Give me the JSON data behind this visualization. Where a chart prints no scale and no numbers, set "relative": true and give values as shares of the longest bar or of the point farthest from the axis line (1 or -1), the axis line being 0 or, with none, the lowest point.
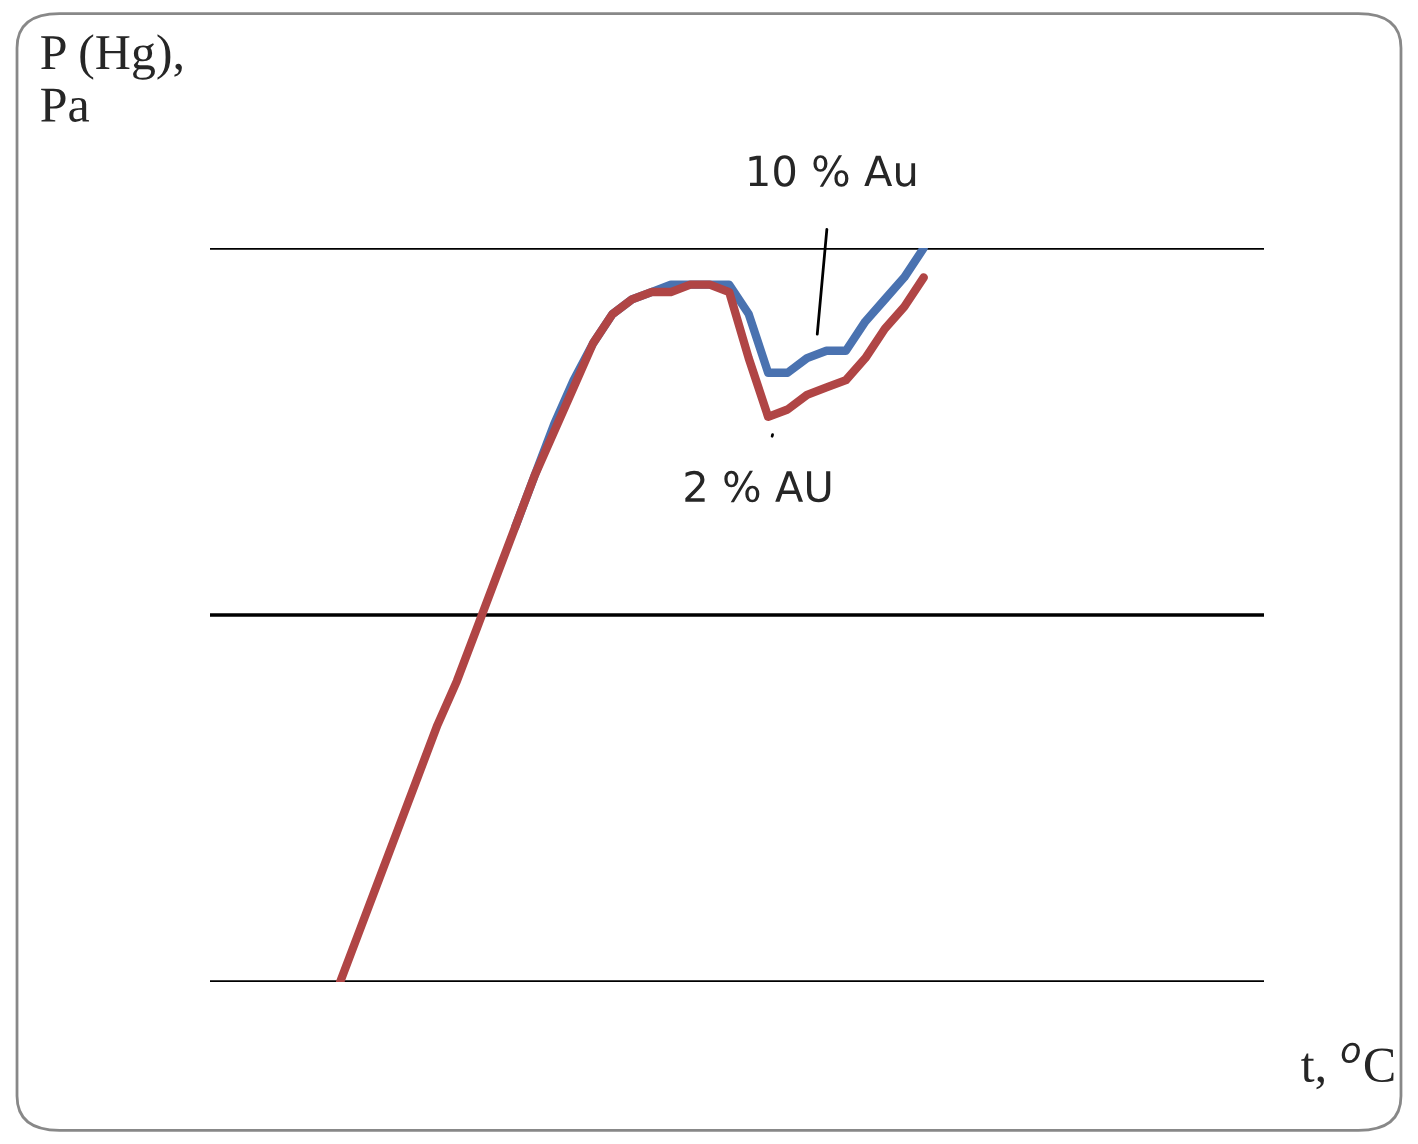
{
  "chart_data": {
    "type": "line",
    "relative": true,
    "annotations": [
      "t, $^{o}$C"
    ],
    "ylabel": "P (Hg),\nPa",
    "categories": [
      null,
      null,
      null,
      null,
      null,
      null,
      null,
      null,
      null,
      null,
      null,
      null,
      null,
      null,
      null,
      null,
      null,
      null,
      null,
      null,
      null,
      null,
      null,
      null,
      null,
      null,
      null,
      null,
      null,
      null,
      null
    ],
    "series": [
      {
        "name": "10 % Au",
        "color": "#4a72b0",
        "values": [
          null,
          null,
          null,
          null,
          null,
          null,
          null,
          null,
          null,
          0.62,
          0.69,
          0.76,
          0.82,
          0.87,
          0.91,
          0.93,
          0.94,
          0.95,
          0.95,
          0.95,
          0.95,
          0.91,
          0.83,
          0.83,
          0.85,
          0.86,
          0.86,
          0.9,
          0.93,
          0.96,
          1
        ]
      },
      {
        "name": "2 % AU",
        "color": "#b04545",
        "values": [
          0,
          0.07,
          0.14,
          0.21,
          0.28,
          0.35,
          0.41,
          0.48,
          0.55,
          0.62,
          0.69,
          0.75,
          0.81,
          0.87,
          0.91,
          0.93,
          0.94,
          0.94,
          0.95,
          0.95,
          0.94,
          0.85,
          0.77,
          0.78,
          0.8,
          0.81,
          0.82,
          0.85,
          0.89,
          0.92,
          0.96
        ]
      }
    ],
    "ref_lines": [
      {
        "axis": "y",
        "value": 0,
        "color": "#000000"
      },
      {
        "axis": "y",
        "value": 0.5,
        "color": "#000000"
      },
      {
        "axis": "y",
        "value": 1,
        "color": "#000000"
      }
    ],
    "legend": false,
    "marker": "none",
    "line_style": "solid"
  }
}
